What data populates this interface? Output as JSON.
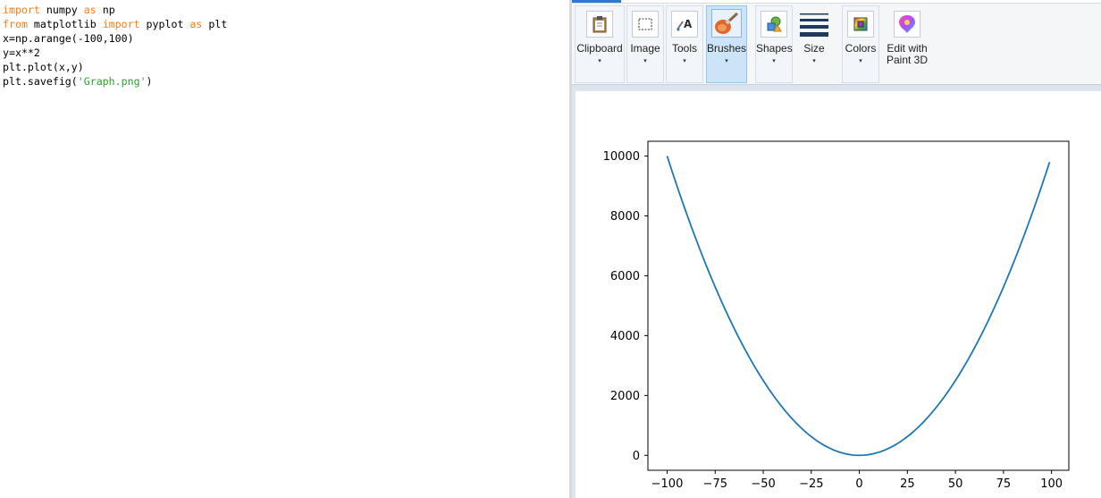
{
  "editor": {
    "lines": [
      [
        {
          "t": "import",
          "c": "kw"
        },
        {
          "t": " numpy ",
          "c": "pl"
        },
        {
          "t": "as",
          "c": "kw"
        },
        {
          "t": " np",
          "c": "pl"
        }
      ],
      [
        {
          "t": "from",
          "c": "kw"
        },
        {
          "t": " matplotlib ",
          "c": "pl"
        },
        {
          "t": "import",
          "c": "kw"
        },
        {
          "t": " pyplot ",
          "c": "pl"
        },
        {
          "t": "as",
          "c": "kw"
        },
        {
          "t": " plt",
          "c": "pl"
        }
      ],
      [
        {
          "t": "x=np.arange(-100,100)",
          "c": "pl"
        }
      ],
      [
        {
          "t": "y=x**2",
          "c": "pl"
        }
      ],
      [
        {
          "t": "plt.plot(x,y)",
          "c": "pl"
        }
      ],
      [
        {
          "t": "plt.savefig(",
          "c": "pl"
        },
        {
          "t": "'Graph.png'",
          "c": "str"
        },
        {
          "t": ")",
          "c": "pl"
        }
      ]
    ]
  },
  "ribbon": {
    "clipboard_label": "Clipboard",
    "image_label": "Image",
    "tools_label": "Tools",
    "brushes_label": "Brushes",
    "shapes_label": "Shapes",
    "size_label": "Size",
    "colors_label": "Colors",
    "paint3d_label_line1": "Edit with",
    "paint3d_label_line2": "Paint 3D",
    "caret": "▾"
  },
  "icons": {
    "clipboard": "clipboard-icon",
    "image": "select-icon",
    "tools": "text-tool-icon",
    "brushes": "brush-icon",
    "shapes": "shapes-icon",
    "size": "line-size-icon",
    "colors": "palette-icon",
    "paint3d": "paint3d-icon"
  },
  "colors": {
    "keyword": "#f07f1b",
    "string": "#2da12d",
    "line": "#1f77b4",
    "accent": "#2b79d0"
  },
  "chart_data": {
    "type": "line",
    "x_range": [
      -100,
      99
    ],
    "formula": "y=x**2",
    "xlim": [
      -110,
      109
    ],
    "ylim": [
      -500,
      10495
    ],
    "xticks": [
      -100,
      -75,
      -50,
      -25,
      0,
      25,
      50,
      75,
      100
    ],
    "yticks": [
      0,
      2000,
      4000,
      6000,
      8000,
      10000
    ],
    "xtick_labels": [
      "−100",
      "−75",
      "−50",
      "−25",
      "0",
      "25",
      "50",
      "75",
      "100"
    ],
    "ytick_labels": [
      "0",
      "2000",
      "4000",
      "6000",
      "8000",
      "10000"
    ],
    "grid": false,
    "series": [
      {
        "color": "#1f77b4"
      }
    ]
  }
}
